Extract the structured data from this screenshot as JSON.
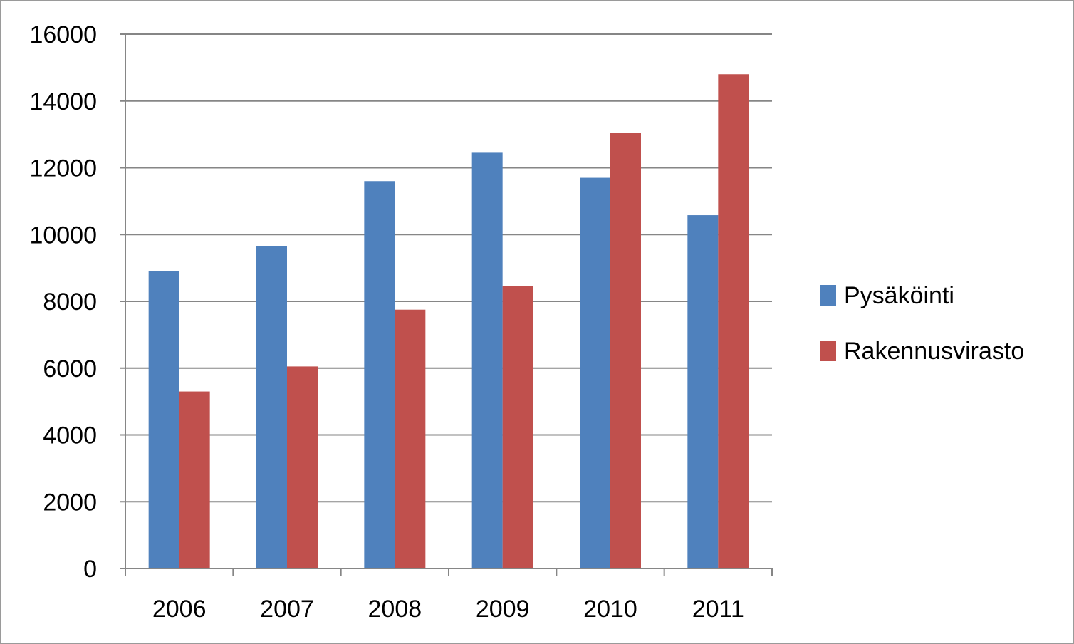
{
  "chart_data": {
    "type": "bar",
    "categories": [
      "2006",
      "2007",
      "2008",
      "2009",
      "2010",
      "2011"
    ],
    "series": [
      {
        "name": "Pysäköinti",
        "color": "#4f81bd",
        "values": [
          8900,
          9650,
          11600,
          12450,
          11700,
          10580
        ]
      },
      {
        "name": "Rakennusvirasto",
        "color": "#c0504d",
        "values": [
          5300,
          6050,
          7750,
          8450,
          13050,
          14800
        ]
      }
    ],
    "yticks": [
      0,
      2000,
      4000,
      6000,
      8000,
      10000,
      12000,
      14000,
      16000
    ],
    "ylim": [
      0,
      16000
    ],
    "grid": true,
    "legend_position": "right"
  }
}
